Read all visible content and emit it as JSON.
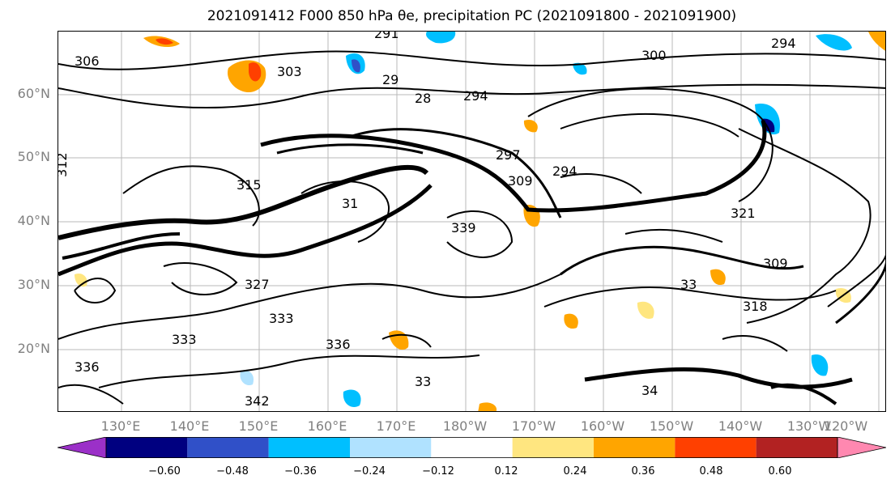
{
  "title": "2021091412 F000 850 hPa θe, precipitation PC (2021091800 - 2021091900)",
  "map": {
    "lat_labels": [
      "60°N",
      "50°N",
      "40°N",
      "30°N",
      "20°N"
    ],
    "lon_labels": [
      "130°E",
      "140°E",
      "150°E",
      "160°E",
      "170°E",
      "180°W",
      "170°W",
      "160°W",
      "150°W",
      "140°W",
      "130°W",
      "120°W"
    ],
    "contour_labels": [
      "306",
      "291",
      "303",
      "300",
      "29",
      "28",
      "294",
      "294",
      "297",
      "294",
      "309",
      "31",
      "315",
      "339",
      "321",
      "309",
      "33",
      "318",
      "333",
      "336",
      "33",
      "342",
      "34",
      "312",
      "327",
      "333",
      "336"
    ]
  },
  "colorbar": {
    "colors": [
      "#9b30c8",
      "#000080",
      "#3050c8",
      "#00bfff",
      "#b0e2ff",
      "#ffffff",
      "#ffe680",
      "#ffa500",
      "#ff4000",
      "#b22222",
      "#ff88b0"
    ],
    "tick_labels": [
      "−0.60",
      "−0.48",
      "−0.36",
      "−0.24",
      "−0.12",
      "0.12",
      "0.24",
      "0.36",
      "0.48",
      "0.60"
    ]
  }
}
